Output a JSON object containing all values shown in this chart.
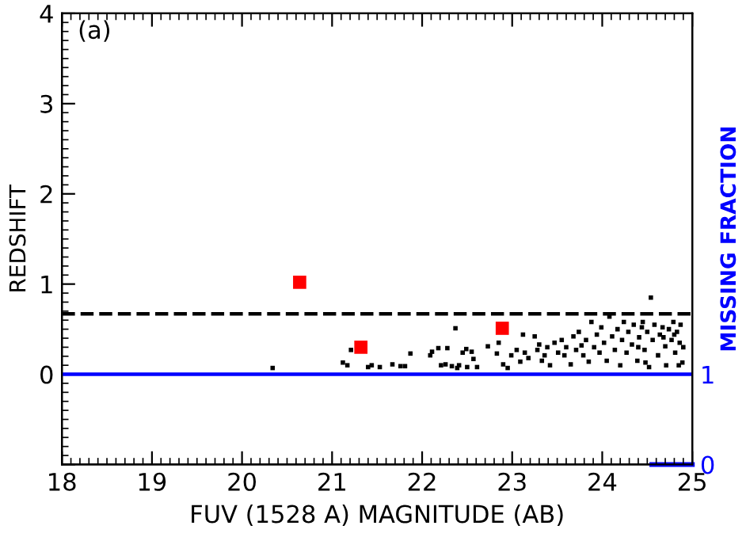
{
  "chart_data": {
    "type": "scatter",
    "xlabel": "FUV (1528 A) MAGNITUDE (AB)",
    "ylabel": "REDSHIFT",
    "y2label": "MISSING FRACTION",
    "annotations": [
      "(a)"
    ],
    "xlim": [
      18,
      25
    ],
    "xticks": [
      18,
      19,
      20,
      21,
      22,
      23,
      24,
      25
    ],
    "ylim": [
      -1,
      4
    ],
    "yticks": [
      {
        "value": -1,
        "label": null
      },
      0,
      1,
      2,
      3,
      4
    ],
    "y2lim": [
      0,
      5
    ],
    "y2ticks": [
      0,
      1
    ],
    "grid": false,
    "legend": false,
    "ref_lines": [
      {
        "axis": "y",
        "value": 0.67,
        "color": "#000000",
        "line_style": "dashed"
      },
      {
        "axis": "y",
        "value": 0,
        "color": "#0000ff",
        "line_style": "solid"
      }
    ],
    "series": [
      {
        "marker": "square",
        "color": "#000000",
        "x": [
          20.34,
          21.12,
          21.17,
          21.21,
          21.4,
          21.44,
          21.53,
          21.67,
          21.76,
          21.81,
          21.87,
          22.09,
          22.11,
          22.18,
          22.21,
          22.26,
          22.28,
          22.33,
          22.37,
          22.39,
          22.41,
          22.45,
          22.49,
          22.5,
          22.55,
          22.57,
          22.61,
          22.73,
          22.83,
          22.85,
          22.9,
          22.95,
          22.99,
          23.05,
          23.09,
          23.12,
          23.14,
          23.18,
          23.25,
          23.28,
          23.3,
          23.33,
          23.36,
          23.39,
          23.42,
          23.47,
          23.51,
          23.55,
          23.58,
          23.6,
          23.65,
          23.68,
          23.71,
          23.74,
          23.77,
          23.79,
          23.82,
          23.85,
          23.88,
          23.91,
          23.94,
          23.97,
          23.99,
          24.02,
          24.05,
          24.08,
          24.11,
          24.14,
          24.17,
          24.2,
          24.22,
          24.24,
          24.27,
          24.29,
          24.33,
          24.35,
          24.39,
          24.41,
          24.44,
          24.47,
          24.5,
          24.52,
          24.54,
          24.56,
          24.58,
          24.62,
          24.64,
          24.67,
          24.7,
          24.71,
          24.74,
          24.77,
          24.79,
          24.81,
          24.83,
          24.86,
          24.87,
          24.89,
          24.9,
          24.85,
          24.48,
          24.4,
          24.68,
          24.45,
          24.8
        ],
        "values": [
          0.07,
          0.13,
          0.1,
          0.27,
          0.08,
          0.1,
          0.08,
          0.11,
          0.09,
          0.09,
          0.23,
          0.21,
          0.25,
          0.29,
          0.1,
          0.11,
          0.29,
          0.09,
          0.51,
          0.07,
          0.1,
          0.24,
          0.28,
          0.08,
          0.25,
          0.17,
          0.08,
          0.31,
          0.23,
          0.35,
          0.11,
          0.07,
          0.21,
          0.27,
          0.14,
          0.44,
          0.24,
          0.18,
          0.42,
          0.27,
          0.33,
          0.15,
          0.21,
          0.3,
          0.1,
          0.35,
          0.24,
          0.38,
          0.21,
          0.3,
          0.11,
          0.42,
          0.27,
          0.47,
          0.32,
          0.21,
          0.38,
          0.14,
          0.58,
          0.3,
          0.44,
          0.24,
          0.52,
          0.35,
          0.15,
          0.64,
          0.42,
          0.27,
          0.5,
          0.1,
          0.38,
          0.58,
          0.24,
          0.47,
          0.33,
          0.55,
          0.15,
          0.41,
          0.52,
          0.27,
          0.47,
          0.08,
          0.85,
          0.38,
          0.55,
          0.21,
          0.44,
          0.52,
          0.31,
          0.1,
          0.5,
          0.38,
          0.58,
          0.24,
          0.47,
          0.35,
          0.55,
          0.13,
          0.3,
          0.1,
          0.13,
          0.3,
          0.41,
          0.58,
          0.44
        ]
      },
      {
        "marker": "square",
        "color": "#ff0000",
        "x": [
          20.64,
          21.32,
          22.89
        ],
        "values": [
          1.02,
          0.3,
          0.51
        ]
      },
      {
        "type": "line",
        "axis": "y2",
        "marker": "none",
        "color": "#0000ff",
        "x": [
          24.55,
          25
        ],
        "values": [
          0,
          0
        ]
      }
    ]
  }
}
